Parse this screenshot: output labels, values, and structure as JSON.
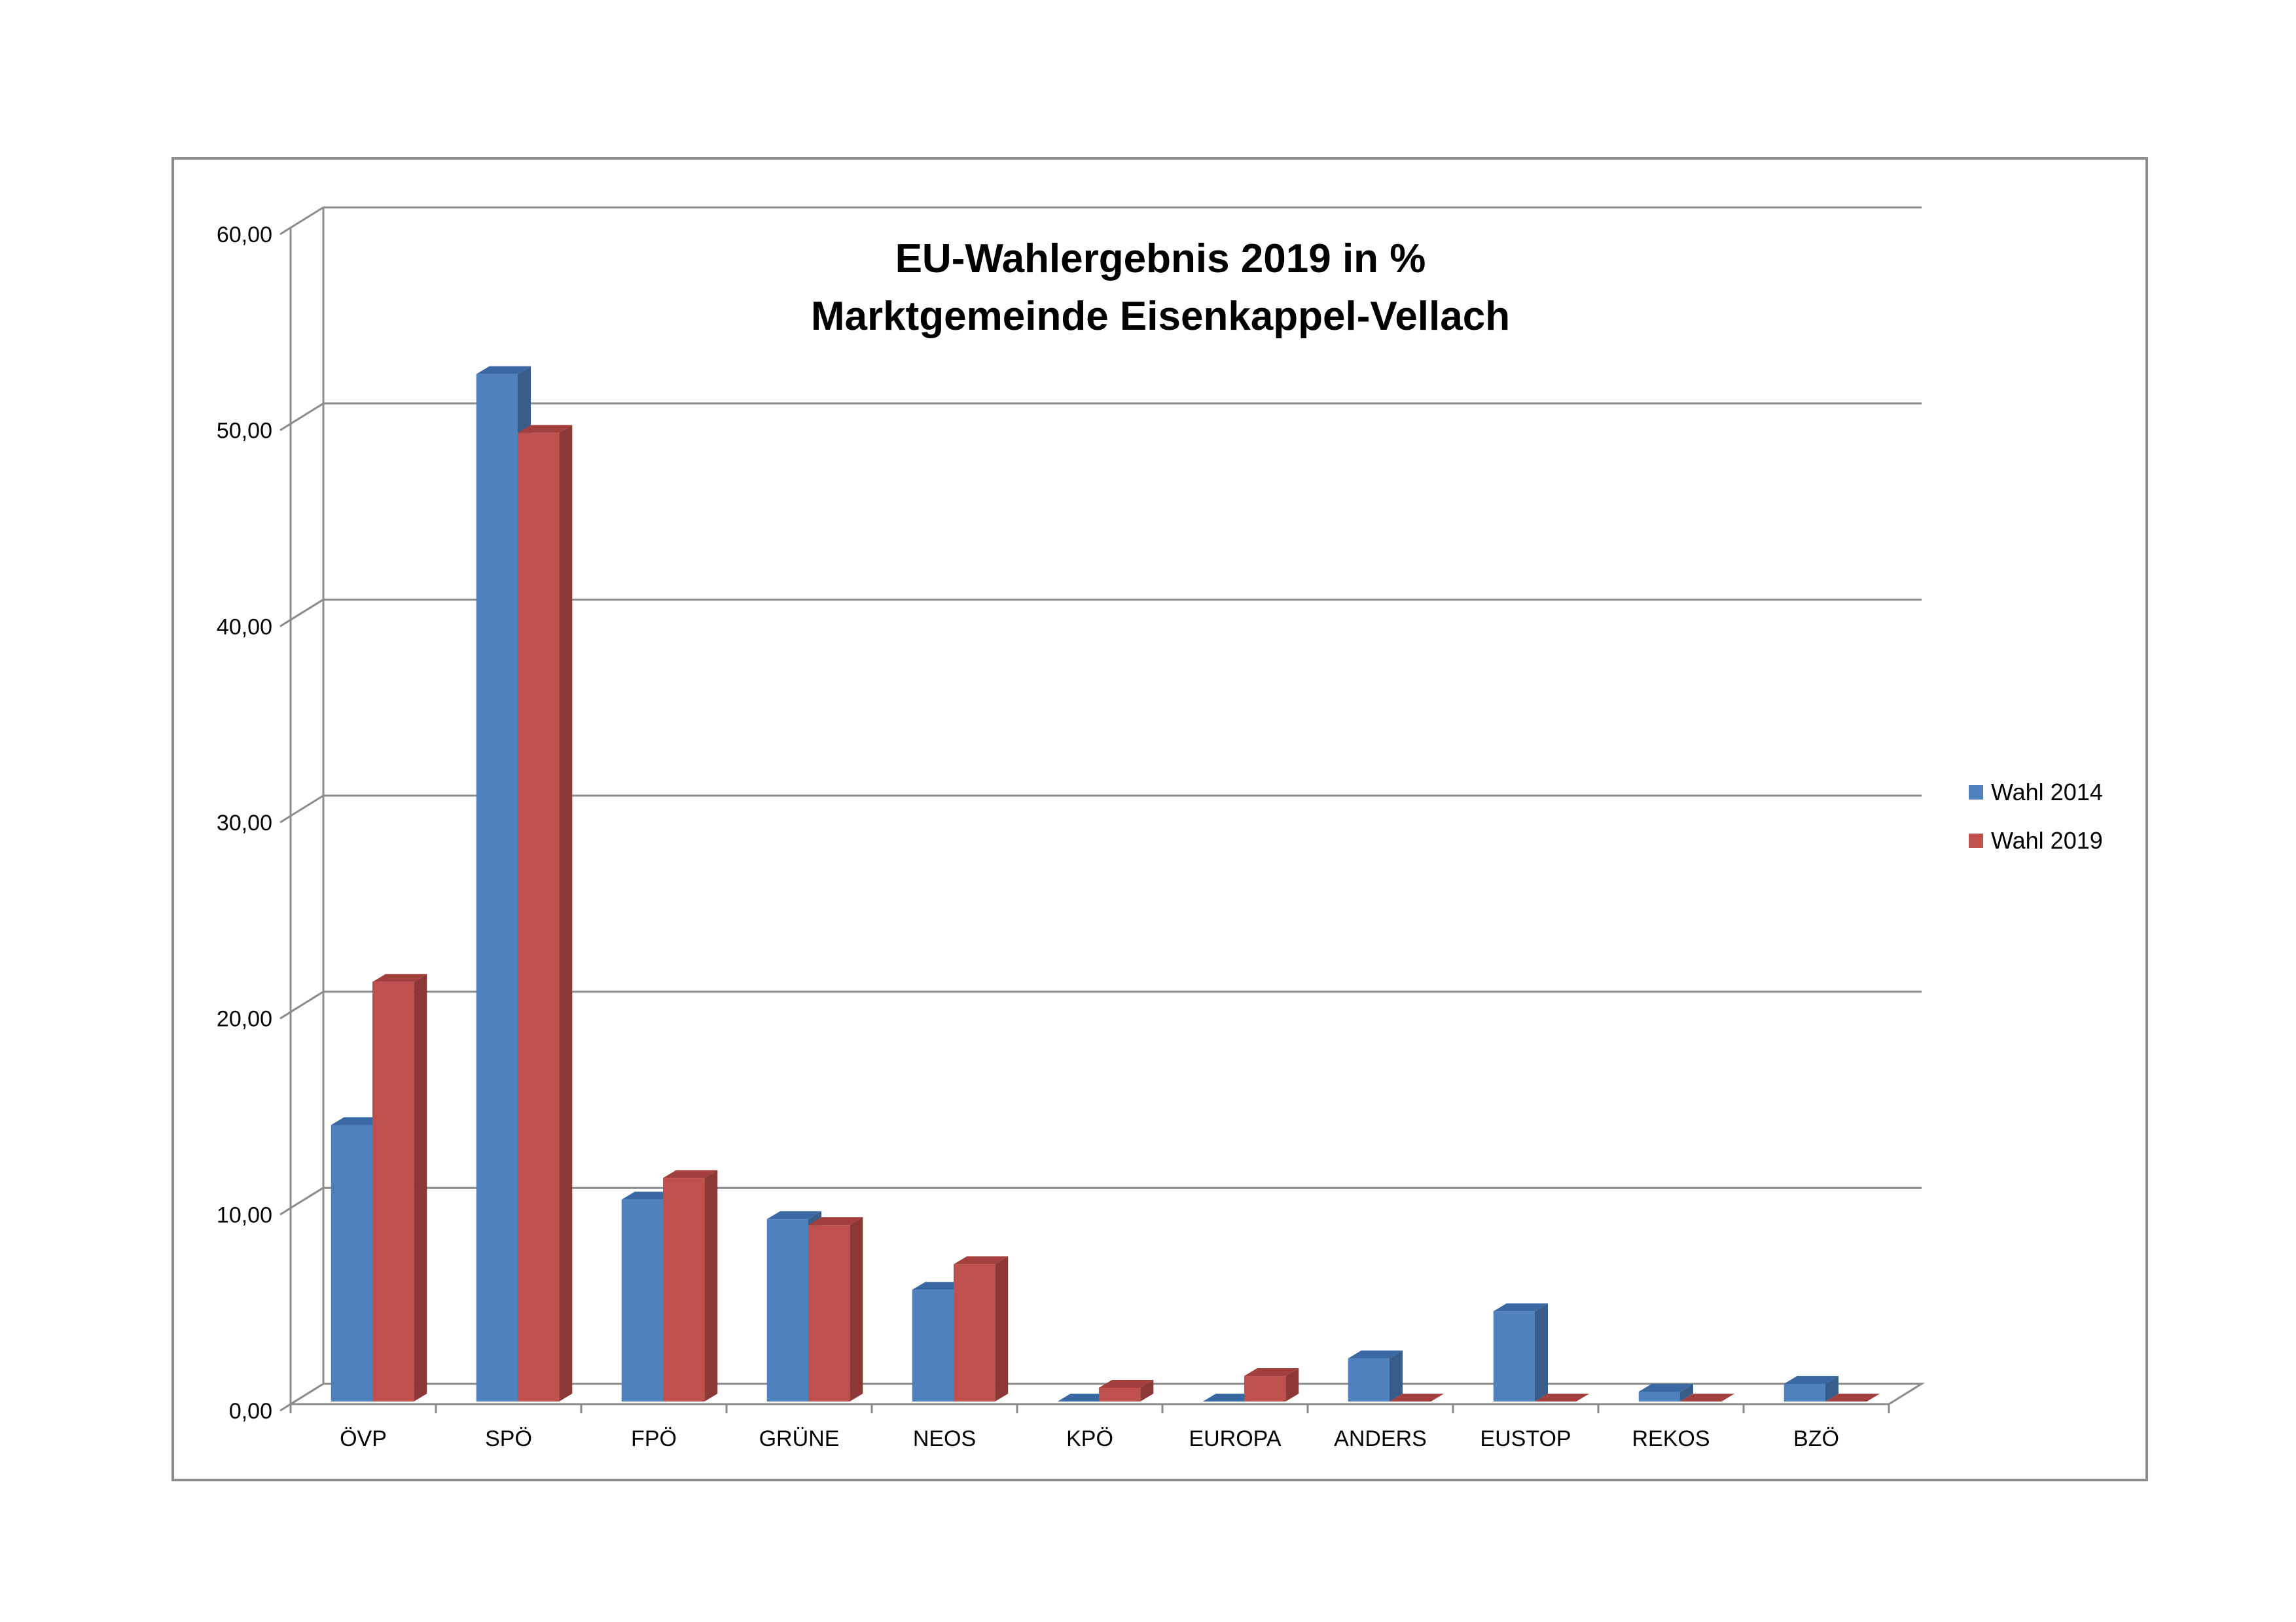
{
  "chart_data": {
    "type": "bar",
    "title": [
      "EU-Wahlergebnis 2019 in %",
      "Marktgemeinde Eisenkappel-Vellach"
    ],
    "categories": [
      "ÖVP",
      "SPÖ",
      "FPÖ",
      "GRÜNE",
      "NEOS",
      "KPÖ",
      "EUROPA",
      "ANDERS",
      "EUSTOP",
      "REKOS",
      "BZÖ"
    ],
    "series": [
      {
        "name": "Wahl 2014",
        "values": [
          14.1,
          52.4,
          10.3,
          9.3,
          5.7,
          0.0,
          0.0,
          2.2,
          4.6,
          0.5,
          0.9
        ],
        "color": "#4f81bd",
        "side_color": "#385d8a",
        "top_color": "#3a68a3"
      },
      {
        "name": "Wahl 2019",
        "values": [
          21.4,
          49.4,
          11.4,
          9.0,
          7.0,
          0.7,
          1.3,
          0.0,
          0.0,
          0.0,
          0.0
        ],
        "color": "#c0504d",
        "side_color": "#8c3836",
        "top_color": "#a33f3c"
      }
    ],
    "yticks": [
      "0,00",
      "10,00",
      "20,00",
      "30,00",
      "40,00",
      "50,00",
      "60,00"
    ],
    "ylim": [
      0,
      60
    ],
    "grid": true,
    "legend_position": "right",
    "style": "3d-clustered-column",
    "xlabel": "",
    "ylabel": ""
  }
}
